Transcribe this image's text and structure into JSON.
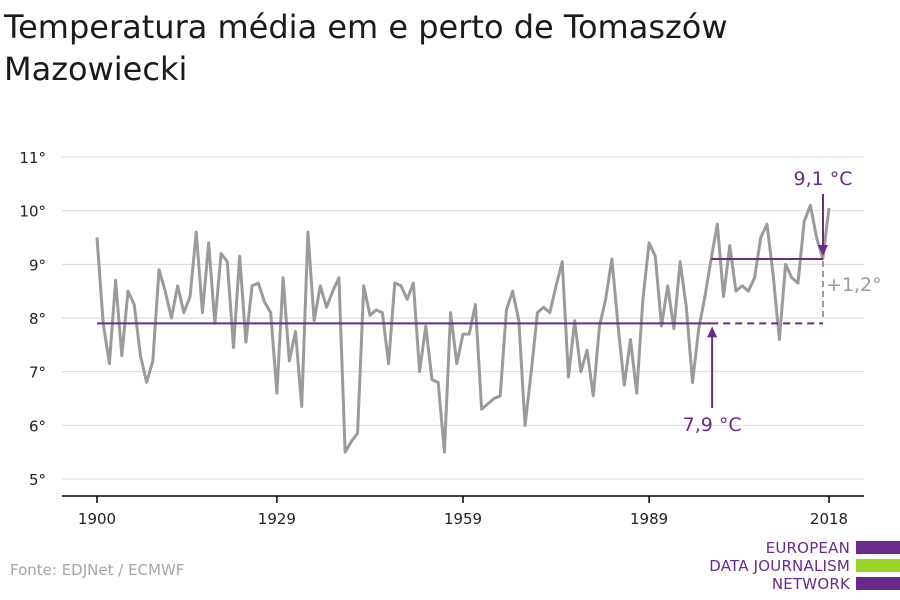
{
  "title": "Temperatura média em e perto de Tomaszów Mazowiecki",
  "source": "Fonte: EDJNet / ECMWF",
  "logo": {
    "lines": [
      "EUROPEAN",
      "DATA JOURNALISM",
      "NETWORK"
    ],
    "bar_colors": [
      "#6a2a8a",
      "#9ad32a",
      "#6a2a8a"
    ]
  },
  "colors": {
    "series": "#9b9b9b",
    "accent": "#6a2a8a",
    "grid": "#d9d9d9",
    "axis": "#000000",
    "delta": "#9b9b9b"
  },
  "chart_data": {
    "type": "line",
    "title": "Temperatura média em e perto de Tomaszów Mazowiecki",
    "xlabel": "",
    "ylabel": "",
    "x_ticks": [
      1900,
      1929,
      1959,
      1989,
      2018
    ],
    "y_ticks": [
      "5°",
      "6°",
      "7°",
      "8°",
      "9°",
      "10°",
      "11°"
    ],
    "y_tick_values": [
      5,
      6,
      7,
      8,
      9,
      10,
      11
    ],
    "xlim": [
      1900,
      2018
    ],
    "ylim": [
      4.7,
      11
    ],
    "grid": true,
    "x": [
      1900,
      1901,
      1902,
      1903,
      1904,
      1905,
      1906,
      1907,
      1908,
      1909,
      1910,
      1911,
      1912,
      1913,
      1914,
      1915,
      1916,
      1917,
      1918,
      1919,
      1920,
      1921,
      1922,
      1923,
      1924,
      1925,
      1926,
      1927,
      1928,
      1929,
      1930,
      1931,
      1932,
      1933,
      1934,
      1935,
      1936,
      1937,
      1938,
      1939,
      1940,
      1941,
      1942,
      1943,
      1944,
      1945,
      1946,
      1947,
      1948,
      1949,
      1950,
      1951,
      1952,
      1953,
      1954,
      1955,
      1956,
      1957,
      1958,
      1959,
      1960,
      1961,
      1962,
      1963,
      1964,
      1965,
      1966,
      1967,
      1968,
      1969,
      1970,
      1971,
      1972,
      1973,
      1974,
      1975,
      1976,
      1977,
      1978,
      1979,
      1980,
      1981,
      1982,
      1983,
      1984,
      1985,
      1986,
      1987,
      1988,
      1989,
      1990,
      1991,
      1992,
      1993,
      1994,
      1995,
      1996,
      1997,
      1998,
      1999,
      2000,
      2001,
      2002,
      2003,
      2004,
      2005,
      2006,
      2007,
      2008,
      2009,
      2010,
      2011,
      2012,
      2013,
      2014,
      2015,
      2016,
      2017,
      2018
    ],
    "series": [
      {
        "values": [
          9.5,
          7.9,
          7.15,
          8.7,
          7.3,
          8.5,
          8.25,
          7.3,
          6.8,
          7.2,
          8.9,
          8.5,
          8.0,
          8.6,
          8.1,
          8.4,
          9.6,
          8.1,
          9.4,
          7.9,
          9.2,
          9.05,
          7.45,
          9.15,
          7.55,
          8.6,
          8.65,
          8.3,
          8.1,
          6.6,
          8.75,
          7.2,
          7.75,
          6.35,
          9.6,
          7.95,
          8.6,
          8.2,
          8.5,
          8.75,
          5.5,
          5.7,
          5.85,
          8.6,
          8.05,
          8.15,
          8.1,
          7.15,
          8.65,
          8.6,
          8.35,
          8.65,
          7.0,
          7.85,
          6.85,
          6.8,
          5.5,
          8.1,
          7.15,
          7.7,
          7.7,
          8.25,
          6.3,
          6.4,
          6.5,
          6.55,
          8.15,
          8.5,
          7.95,
          6.0,
          7.0,
          8.1,
          8.2,
          8.1,
          8.6,
          9.05,
          6.9,
          7.95,
          7.0,
          7.4,
          6.55,
          7.85,
          8.35,
          9.1,
          7.85,
          6.75,
          7.6,
          6.6,
          8.35,
          9.4,
          9.15,
          7.85,
          8.6,
          7.8,
          9.05,
          8.2,
          6.8,
          7.8,
          8.4,
          9.1,
          9.75,
          8.4,
          9.35,
          8.5,
          8.6,
          8.5,
          8.75,
          9.5,
          9.75,
          8.8,
          7.6,
          9.0,
          8.75,
          8.65,
          9.8,
          10.1,
          9.5,
          9.1,
          10.05
        ]
      }
    ],
    "annotations": [
      {
        "label": "9,1 °C",
        "value": 9.1,
        "from_year": 1999,
        "to_year": 2018
      },
      {
        "label": "7,9 °C",
        "value": 7.9,
        "from_year": 1900,
        "to_year": 2018,
        "solid_until": 1999
      },
      {
        "label": "+1,2°"
      }
    ]
  }
}
